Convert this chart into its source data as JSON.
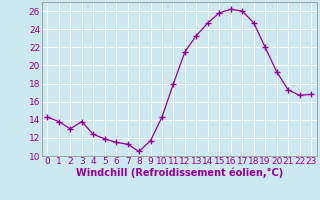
{
  "x": [
    0,
    1,
    2,
    3,
    4,
    5,
    6,
    7,
    8,
    9,
    10,
    11,
    12,
    13,
    14,
    15,
    16,
    17,
    18,
    19,
    20,
    21,
    22,
    23
  ],
  "y": [
    14.3,
    13.8,
    13.0,
    13.8,
    12.4,
    11.9,
    11.5,
    11.3,
    10.5,
    11.7,
    14.3,
    18.0,
    21.5,
    23.3,
    24.7,
    25.8,
    26.2,
    26.0,
    24.7,
    22.0,
    19.3,
    17.3,
    16.7,
    16.8
  ],
  "line_color": "#990099",
  "marker": "+",
  "bg_color": "#cce8f0",
  "grid_color": "#ffffff",
  "xlabel": "Windchill (Refroidissement éolien,°C)",
  "xlabel_fontsize": 7,
  "tick_fontsize": 6.5,
  "ylim": [
    10,
    27
  ],
  "xlim": [
    -0.5,
    23.5
  ],
  "yticks": [
    10,
    12,
    14,
    16,
    18,
    20,
    22,
    24,
    26
  ],
  "xticks": [
    0,
    1,
    2,
    3,
    4,
    5,
    6,
    7,
    8,
    9,
    10,
    11,
    12,
    13,
    14,
    15,
    16,
    17,
    18,
    19,
    20,
    21,
    22,
    23
  ],
  "spine_color": "#888888"
}
